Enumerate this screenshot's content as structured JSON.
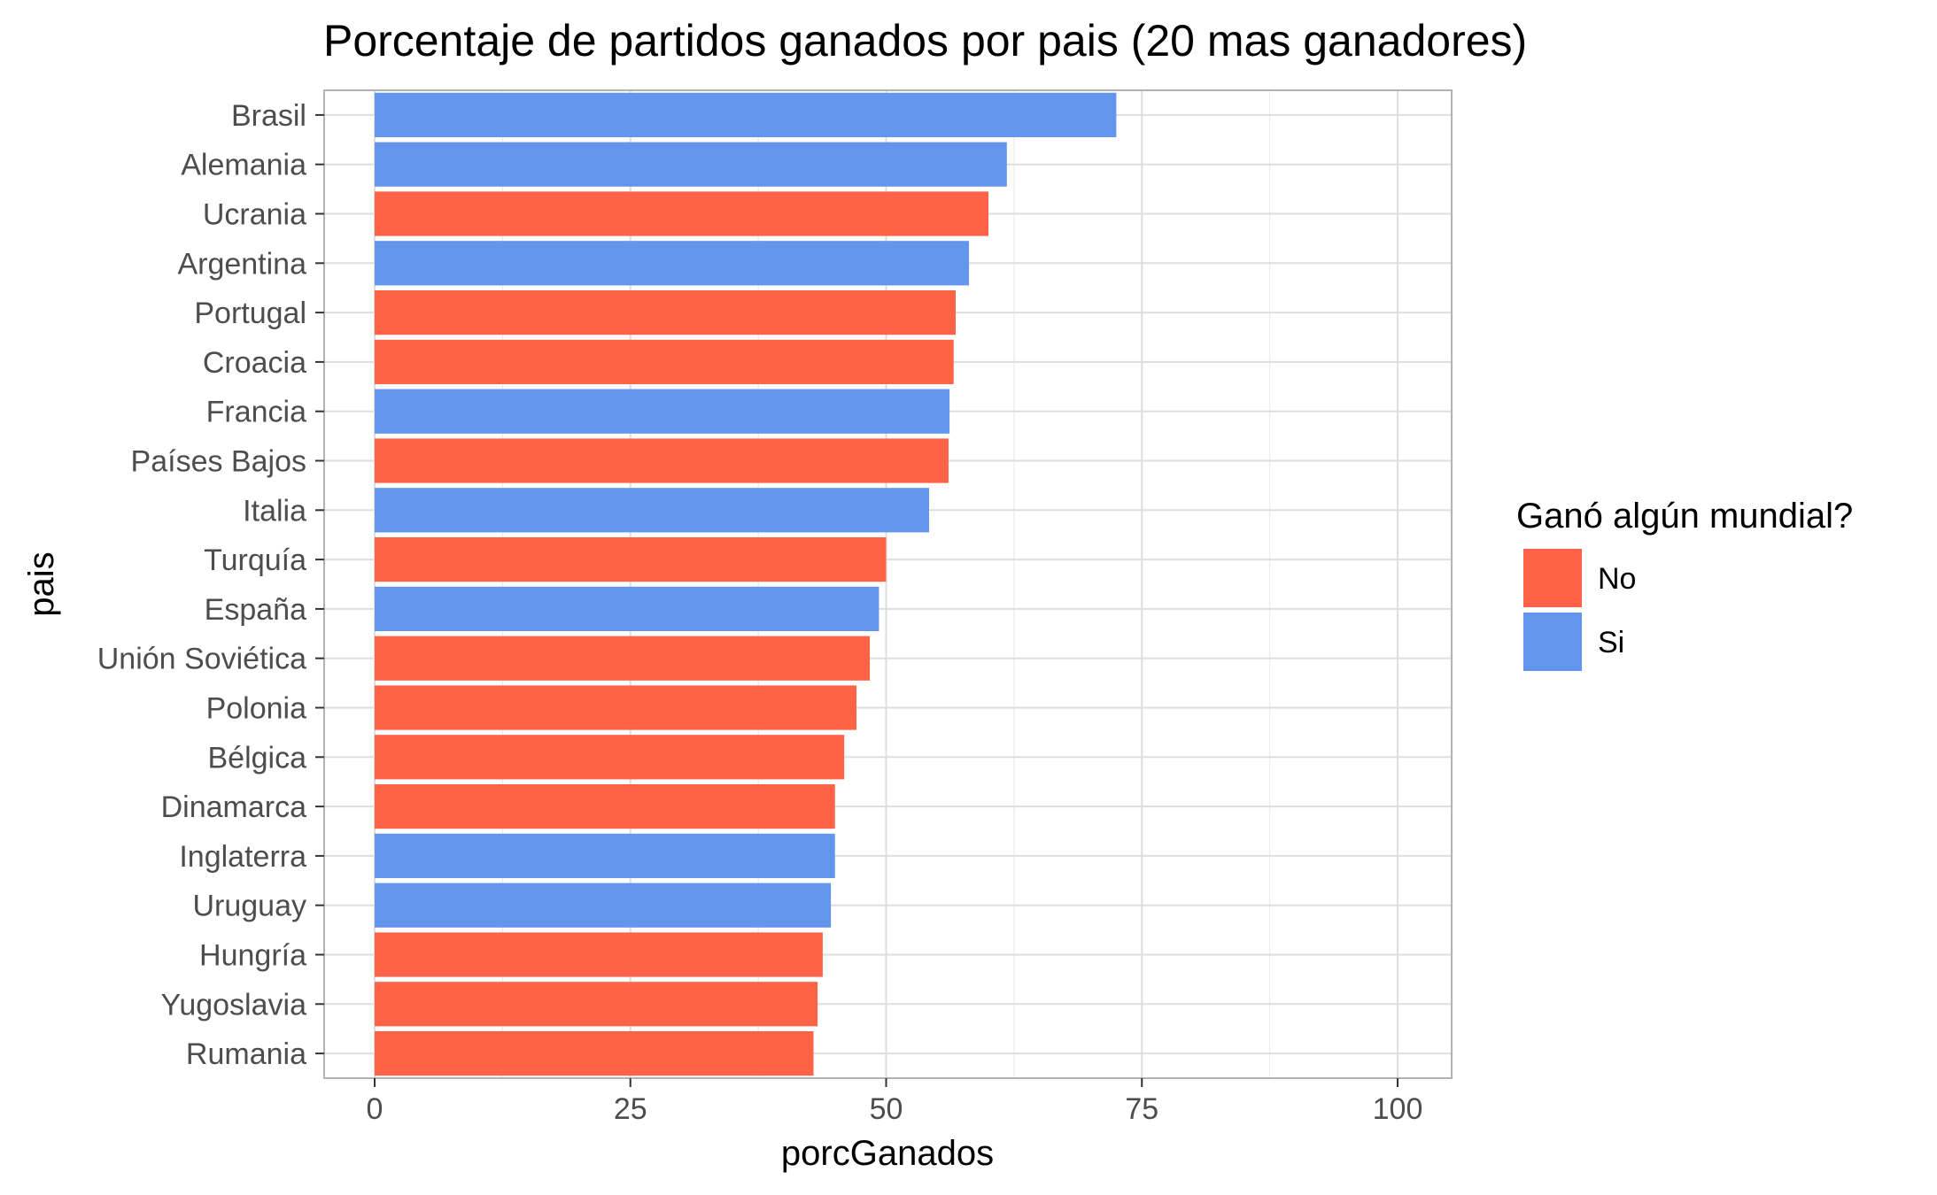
{
  "chart_data": {
    "type": "bar",
    "orientation": "horizontal",
    "title": "Porcentaje de partidos ganados por pais (20 mas ganadores)",
    "xlabel": "porcGanados",
    "ylabel": "pais",
    "xlim": [
      0,
      105
    ],
    "xticks": [
      0,
      25,
      50,
      75,
      100
    ],
    "grid": true,
    "legend": {
      "title": "Ganó algún mundial?",
      "position": "right",
      "entries": [
        {
          "label": "No",
          "color": "#FF6347"
        },
        {
          "label": "Si",
          "color": "#6495ED"
        }
      ]
    },
    "categories": [
      "Brasil",
      "Alemania",
      "Ucrania",
      "Argentina",
      "Portugal",
      "Croacia",
      "Francia",
      "Países Bajos",
      "Italia",
      "Turquía",
      "España",
      "Unión Soviética",
      "Polonia",
      "Bélgica",
      "Dinamarca",
      "Inglaterra",
      "Uruguay",
      "Hungría",
      "Yugoslavia",
      "Rumania"
    ],
    "values": [
      72.5,
      61.8,
      60.0,
      58.1,
      56.8,
      56.6,
      56.2,
      56.1,
      54.2,
      50.0,
      49.3,
      48.4,
      47.1,
      45.9,
      45.0,
      45.0,
      44.6,
      43.8,
      43.3,
      42.9
    ],
    "groups": [
      "Si",
      "Si",
      "No",
      "Si",
      "No",
      "No",
      "Si",
      "No",
      "Si",
      "No",
      "Si",
      "No",
      "No",
      "No",
      "No",
      "Si",
      "Si",
      "No",
      "No",
      "No"
    ]
  }
}
